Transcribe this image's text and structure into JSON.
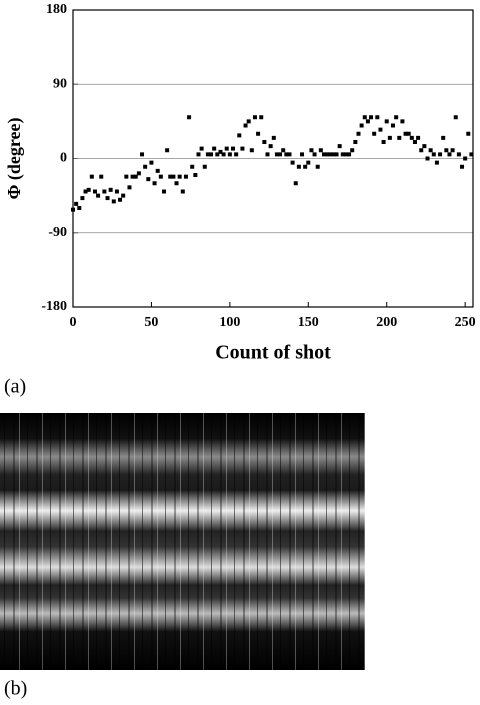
{
  "chart_data": {
    "type": "scatter",
    "xlabel": "Count of shot",
    "ylabel": "Φ (degree)",
    "xlim": [
      0,
      255
    ],
    "ylim": [
      -180,
      180
    ],
    "xticks": [
      0,
      50,
      100,
      150,
      200,
      250
    ],
    "yticks": [
      180,
      90,
      0,
      -90,
      -180
    ],
    "grid": true,
    "color": "#000000",
    "x": [
      0,
      2,
      4,
      6,
      8,
      10,
      12,
      14,
      16,
      18,
      20,
      22,
      24,
      26,
      28,
      30,
      32,
      34,
      36,
      38,
      40,
      42,
      44,
      46,
      48,
      50,
      52,
      54,
      56,
      58,
      60,
      62,
      64,
      66,
      68,
      70,
      72,
      74,
      76,
      78,
      80,
      82,
      84,
      86,
      88,
      90,
      92,
      94,
      96,
      98,
      100,
      102,
      104,
      106,
      108,
      110,
      112,
      114,
      116,
      118,
      120,
      122,
      124,
      126,
      128,
      130,
      132,
      134,
      136,
      138,
      140,
      142,
      144,
      146,
      148,
      150,
      152,
      154,
      156,
      158,
      160,
      162,
      164,
      166,
      168,
      170,
      172,
      174,
      176,
      178,
      180,
      182,
      184,
      186,
      188,
      190,
      192,
      194,
      196,
      198,
      200,
      202,
      204,
      206,
      208,
      210,
      212,
      214,
      216,
      218,
      220,
      222,
      224,
      226,
      228,
      230,
      232,
      234,
      236,
      238,
      240,
      242,
      244,
      246,
      248,
      250,
      252,
      254
    ],
    "values": [
      -62,
      -55,
      -60,
      -48,
      -40,
      -38,
      -22,
      -40,
      -45,
      -22,
      -40,
      -48,
      -38,
      -52,
      -40,
      -50,
      -45,
      -22,
      -35,
      -22,
      -22,
      -18,
      5,
      -10,
      -25,
      -5,
      -30,
      -15,
      -22,
      -40,
      10,
      -22,
      -22,
      -30,
      -22,
      -40,
      -22,
      50,
      -10,
      -20,
      5,
      12,
      -10,
      5,
      5,
      12,
      5,
      8,
      5,
      12,
      5,
      12,
      5,
      28,
      12,
      40,
      45,
      10,
      50,
      30,
      50,
      20,
      5,
      15,
      25,
      5,
      5,
      10,
      5,
      5,
      -5,
      -30,
      -10,
      5,
      -10,
      -5,
      10,
      5,
      -10,
      10,
      5,
      5,
      5,
      5,
      5,
      15,
      5,
      5,
      5,
      10,
      20,
      30,
      40,
      50,
      45,
      50,
      30,
      50,
      35,
      20,
      45,
      25,
      40,
      50,
      25,
      45,
      30,
      30,
      25,
      20,
      25,
      10,
      15,
      0,
      10,
      5,
      -5,
      5,
      25,
      10,
      5,
      10,
      50,
      5,
      -10,
      0,
      30,
      5
    ]
  },
  "captions": [
    "(a)",
    "(b)"
  ]
}
